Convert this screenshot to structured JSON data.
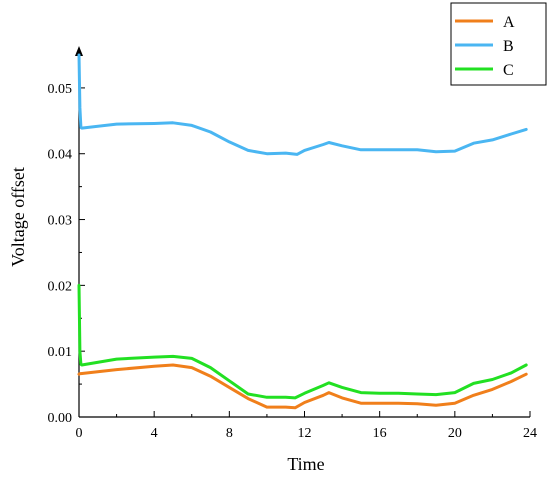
{
  "chart_data": {
    "type": "line",
    "title": "",
    "xlabel": "Time",
    "ylabel": "Voltage offset",
    "xlim": [
      0,
      24
    ],
    "ylim": [
      0,
      0.055
    ],
    "xticks": [
      0,
      4,
      8,
      12,
      16,
      20,
      24
    ],
    "xtick_labels": [
      "0",
      "4",
      "8",
      "12",
      "16",
      "20",
      "24"
    ],
    "yticks": [
      0,
      0.01,
      0.02,
      0.03,
      0.04,
      0.05
    ],
    "ytick_labels": [
      "0.00",
      "0.01",
      "0.02",
      "0.03",
      "0.04",
      "0.05"
    ],
    "grid": false,
    "legend": "top-right",
    "series": [
      {
        "name": "A",
        "color": "#f07f1b",
        "x": [
          0,
          0.05,
          0.1,
          2,
          4,
          5,
          6,
          7,
          8,
          9,
          10,
          11,
          11.5,
          12,
          13,
          13.3,
          14,
          15,
          16,
          17,
          18,
          19,
          20,
          21,
          22,
          23,
          23.8
        ],
        "y": [
          0.0065,
          0.0066,
          0.0066,
          0.0072,
          0.0077,
          0.0079,
          0.0075,
          0.0062,
          0.0045,
          0.0028,
          0.0015,
          0.0015,
          0.0014,
          0.0022,
          0.0033,
          0.0037,
          0.0029,
          0.0021,
          0.0021,
          0.0021,
          0.002,
          0.0018,
          0.0021,
          0.0033,
          0.0042,
          0.0054,
          0.0065
        ]
      },
      {
        "name": "B",
        "color": "#4ab6f2",
        "x": [
          0,
          0.05,
          0.1,
          0.15,
          2,
          4,
          5,
          6,
          7,
          8,
          9,
          10,
          11,
          11.6,
          12,
          13,
          13.3,
          14,
          15,
          16,
          17,
          18,
          19,
          20,
          21,
          22,
          23,
          23.8
        ],
        "y": [
          0.055,
          0.047,
          0.044,
          0.0439,
          0.0445,
          0.0446,
          0.0447,
          0.0443,
          0.0433,
          0.0418,
          0.0405,
          0.04,
          0.0401,
          0.0399,
          0.0405,
          0.0414,
          0.0417,
          0.0412,
          0.0406,
          0.0406,
          0.0406,
          0.0406,
          0.0403,
          0.0404,
          0.0416,
          0.0421,
          0.043,
          0.0437
        ]
      },
      {
        "name": "C",
        "color": "#22e022",
        "x": [
          0,
          0.05,
          0.1,
          0.15,
          2,
          4,
          5,
          6,
          7,
          8,
          9,
          10,
          11,
          11.5,
          12,
          13,
          13.3,
          14,
          15,
          16,
          17,
          18,
          19,
          20,
          21,
          22,
          23,
          23.8
        ],
        "y": [
          0.02,
          0.01,
          0.008,
          0.0079,
          0.0088,
          0.0091,
          0.0092,
          0.0089,
          0.0075,
          0.0055,
          0.0035,
          0.003,
          0.003,
          0.0029,
          0.0036,
          0.0048,
          0.0052,
          0.0045,
          0.0037,
          0.0036,
          0.0036,
          0.0035,
          0.0034,
          0.0037,
          0.0051,
          0.0057,
          0.0067,
          0.0079
        ]
      }
    ]
  }
}
